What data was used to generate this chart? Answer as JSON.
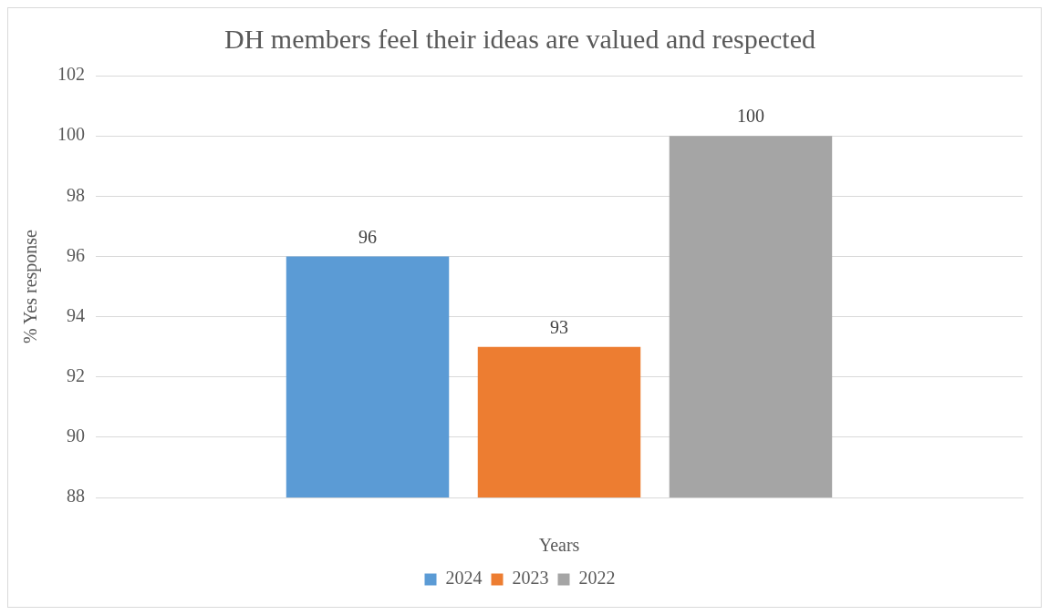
{
  "chart_data": {
    "type": "bar",
    "title": "DH members feel their ideas are valued and respected",
    "xlabel": "Years",
    "ylabel": "% Yes response",
    "categories": [
      null
    ],
    "series": [
      {
        "name": "2024",
        "color": "#5b9bd5",
        "values": [
          96
        ]
      },
      {
        "name": "2023",
        "color": "#ed7d31",
        "values": [
          93
        ]
      },
      {
        "name": "2022",
        "color": "#a5a5a5",
        "values": [
          100
        ]
      }
    ],
    "ylim": [
      88,
      102
    ],
    "yticks": [
      88,
      90,
      92,
      94,
      96,
      98,
      100,
      102
    ],
    "grid": "y",
    "legend": "bottom",
    "data_labels": true
  }
}
